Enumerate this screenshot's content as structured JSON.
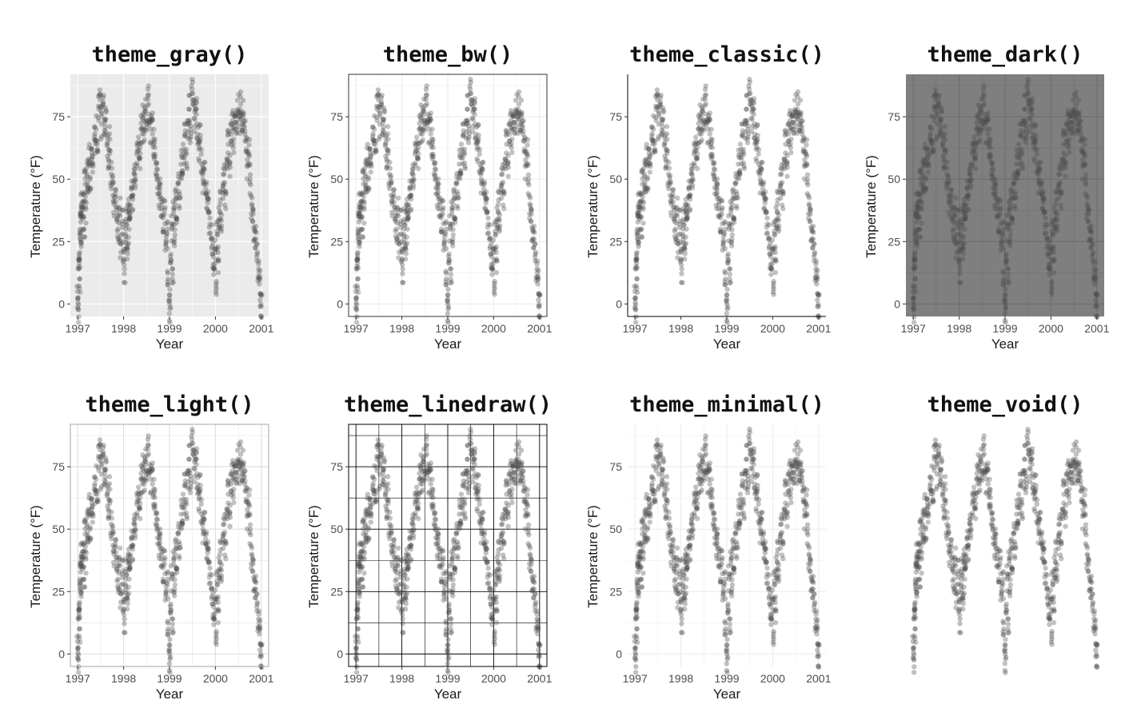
{
  "chart_data": [
    {
      "type": "scatter",
      "theme": "gray",
      "title": "theme_gray()",
      "xlabel": "Year",
      "ylabel": "Temperature (°F)",
      "xticks": [
        "1997",
        "1998",
        "1999",
        "2000",
        "2001"
      ],
      "yticks": [
        "0",
        "25",
        "50",
        "75"
      ],
      "xlim": [
        1997,
        2001
      ],
      "ylim": [
        -5,
        92
      ],
      "grid": true,
      "background": "#ebebeb",
      "grid_color": "#ffffff"
    },
    {
      "type": "scatter",
      "theme": "bw",
      "title": "theme_bw()",
      "xlabel": "Year",
      "ylabel": "Temperature (°F)",
      "xticks": [
        "1997",
        "1998",
        "1999",
        "2000",
        "2001"
      ],
      "yticks": [
        "0",
        "25",
        "50",
        "75"
      ],
      "xlim": [
        1997,
        2001
      ],
      "ylim": [
        -5,
        92
      ],
      "grid": true,
      "background": "#ffffff",
      "grid_color": "#ebebeb",
      "border_color": "#333333"
    },
    {
      "type": "scatter",
      "theme": "classic",
      "title": "theme_classic()",
      "xlabel": "Year",
      "ylabel": "Temperature (°F)",
      "xticks": [
        "1997",
        "1998",
        "1999",
        "2000",
        "2001"
      ],
      "yticks": [
        "0",
        "25",
        "50",
        "75"
      ],
      "xlim": [
        1997,
        2001
      ],
      "ylim": [
        -5,
        92
      ],
      "grid": false,
      "background": "#ffffff",
      "axis_line_color": "#000000"
    },
    {
      "type": "scatter",
      "theme": "dark",
      "title": "theme_dark()",
      "xlabel": "Year",
      "ylabel": "Temperature (°F)",
      "xticks": [
        "1997",
        "1998",
        "1999",
        "2000",
        "2001"
      ],
      "yticks": [
        "0",
        "25",
        "50",
        "75"
      ],
      "xlim": [
        1997,
        2001
      ],
      "ylim": [
        -5,
        92
      ],
      "grid": true,
      "background": "#7f7f7f",
      "grid_color": "#6e6e6e"
    },
    {
      "type": "scatter",
      "theme": "light",
      "title": "theme_light()",
      "xlabel": "Year",
      "ylabel": "Temperature (°F)",
      "xticks": [
        "1997",
        "1998",
        "1999",
        "2000",
        "2001"
      ],
      "yticks": [
        "0",
        "25",
        "50",
        "75"
      ],
      "xlim": [
        1997,
        2001
      ],
      "ylim": [
        -5,
        92
      ],
      "grid": true,
      "background": "#ffffff",
      "grid_color": "#dedede",
      "border_color": "#b3b3b3"
    },
    {
      "type": "scatter",
      "theme": "linedraw",
      "title": "theme_linedraw()",
      "xlabel": "Year",
      "ylabel": "Temperature (°F)",
      "xticks": [
        "1997",
        "1998",
        "1999",
        "2000",
        "2001"
      ],
      "yticks": [
        "0",
        "25",
        "50",
        "75"
      ],
      "xlim": [
        1997,
        2001
      ],
      "ylim": [
        -5,
        92
      ],
      "grid": true,
      "background": "#ffffff",
      "grid_color": "#000000",
      "border_color": "#000000"
    },
    {
      "type": "scatter",
      "theme": "minimal",
      "title": "theme_minimal()",
      "xlabel": "Year",
      "ylabel": "Temperature (°F)",
      "xticks": [
        "1997",
        "1998",
        "1999",
        "2000",
        "2001"
      ],
      "yticks": [
        "0",
        "25",
        "50",
        "75"
      ],
      "xlim": [
        1997,
        2001
      ],
      "ylim": [
        -5,
        92
      ],
      "grid": true,
      "background": "#ffffff",
      "grid_color": "#ebebeb"
    },
    {
      "type": "scatter",
      "theme": "void",
      "title": "theme_void()",
      "xlabel": "",
      "ylabel": "",
      "xticks": [],
      "yticks": [],
      "xlim": [
        1997,
        2001
      ],
      "ylim": [
        -5,
        92
      ],
      "grid": false,
      "background": "#ffffff"
    }
  ],
  "series": {
    "point_color": "#4d4d4d",
    "point_opacity": 0.35,
    "daily_temperature": [
      {
        "x": 1997.0,
        "y": 2
      },
      {
        "x": 1997.01,
        "y": -2
      },
      {
        "x": 1997.02,
        "y": 14
      },
      {
        "x": 1997.03,
        "y": 20
      },
      {
        "x": 1997.04,
        "y": 10
      },
      {
        "x": 1997.05,
        "y": 30
      },
      {
        "x": 1997.06,
        "y": 36
      },
      {
        "x": 1997.07,
        "y": 26
      },
      {
        "x": 1997.08,
        "y": 40
      },
      {
        "x": 1997.1,
        "y": 34
      },
      {
        "x": 1997.12,
        "y": 44
      },
      {
        "x": 1997.14,
        "y": 30
      },
      {
        "x": 1997.16,
        "y": 48
      },
      {
        "x": 1997.18,
        "y": 38
      },
      {
        "x": 1997.2,
        "y": 52
      },
      {
        "x": 1997.22,
        "y": 46
      },
      {
        "x": 1997.24,
        "y": 58
      },
      {
        "x": 1997.27,
        "y": 50
      },
      {
        "x": 1997.3,
        "y": 62
      },
      {
        "x": 1997.33,
        "y": 56
      },
      {
        "x": 1997.36,
        "y": 66
      },
      {
        "x": 1997.4,
        "y": 70
      },
      {
        "x": 1997.43,
        "y": 62
      },
      {
        "x": 1997.46,
        "y": 78
      },
      {
        "x": 1997.49,
        "y": 84
      },
      {
        "x": 1997.52,
        "y": 72
      },
      {
        "x": 1997.55,
        "y": 80
      },
      {
        "x": 1997.58,
        "y": 68
      },
      {
        "x": 1997.61,
        "y": 74
      },
      {
        "x": 1997.64,
        "y": 64
      },
      {
        "x": 1997.67,
        "y": 58
      },
      {
        "x": 1997.7,
        "y": 66
      },
      {
        "x": 1997.73,
        "y": 52
      },
      {
        "x": 1997.76,
        "y": 48
      },
      {
        "x": 1997.79,
        "y": 40
      },
      {
        "x": 1997.82,
        "y": 44
      },
      {
        "x": 1997.85,
        "y": 34
      },
      {
        "x": 1997.88,
        "y": 30
      },
      {
        "x": 1997.91,
        "y": 38
      },
      {
        "x": 1997.94,
        "y": 24
      },
      {
        "x": 1997.97,
        "y": 32
      },
      {
        "x": 1998.0,
        "y": 22
      },
      {
        "x": 1998.02,
        "y": 14
      },
      {
        "x": 1998.04,
        "y": 28
      },
      {
        "x": 1998.06,
        "y": 34
      },
      {
        "x": 1998.08,
        "y": 18
      },
      {
        "x": 1998.1,
        "y": 40
      },
      {
        "x": 1998.12,
        "y": 30
      },
      {
        "x": 1998.14,
        "y": 36
      },
      {
        "x": 1998.17,
        "y": 46
      },
      {
        "x": 1998.2,
        "y": 42
      },
      {
        "x": 1998.23,
        "y": 54
      },
      {
        "x": 1998.26,
        "y": 50
      },
      {
        "x": 1998.29,
        "y": 60
      },
      {
        "x": 1998.32,
        "y": 64
      },
      {
        "x": 1998.35,
        "y": 58
      },
      {
        "x": 1998.38,
        "y": 70
      },
      {
        "x": 1998.41,
        "y": 74
      },
      {
        "x": 1998.44,
        "y": 68
      },
      {
        "x": 1998.47,
        "y": 78
      },
      {
        "x": 1998.5,
        "y": 72
      },
      {
        "x": 1998.53,
        "y": 82
      },
      {
        "x": 1998.56,
        "y": 76
      },
      {
        "x": 1998.59,
        "y": 70
      },
      {
        "x": 1998.62,
        "y": 74
      },
      {
        "x": 1998.65,
        "y": 64
      },
      {
        "x": 1998.68,
        "y": 60
      },
      {
        "x": 1998.71,
        "y": 56
      },
      {
        "x": 1998.74,
        "y": 50
      },
      {
        "x": 1998.77,
        "y": 44
      },
      {
        "x": 1998.8,
        "y": 48
      },
      {
        "x": 1998.83,
        "y": 38
      },
      {
        "x": 1998.86,
        "y": 30
      },
      {
        "x": 1998.89,
        "y": 36
      },
      {
        "x": 1998.92,
        "y": 24
      },
      {
        "x": 1998.95,
        "y": 28
      },
      {
        "x": 1998.97,
        "y": 10
      },
      {
        "x": 1999.0,
        "y": 2
      },
      {
        "x": 1999.01,
        "y": -2
      },
      {
        "x": 1999.03,
        "y": 20
      },
      {
        "x": 1999.05,
        "y": 30
      },
      {
        "x": 1999.07,
        "y": 14
      },
      {
        "x": 1999.09,
        "y": 36
      },
      {
        "x": 1999.11,
        "y": 26
      },
      {
        "x": 1999.13,
        "y": 42
      },
      {
        "x": 1999.16,
        "y": 34
      },
      {
        "x": 1999.19,
        "y": 48
      },
      {
        "x": 1999.22,
        "y": 44
      },
      {
        "x": 1999.25,
        "y": 56
      },
      {
        "x": 1999.28,
        "y": 52
      },
      {
        "x": 1999.31,
        "y": 62
      },
      {
        "x": 1999.34,
        "y": 68
      },
      {
        "x": 1999.37,
        "y": 60
      },
      {
        "x": 1999.4,
        "y": 72
      },
      {
        "x": 1999.43,
        "y": 78
      },
      {
        "x": 1999.46,
        "y": 70
      },
      {
        "x": 1999.49,
        "y": 86
      },
      {
        "x": 1999.52,
        "y": 80
      },
      {
        "x": 1999.55,
        "y": 74
      },
      {
        "x": 1999.58,
        "y": 78
      },
      {
        "x": 1999.61,
        "y": 68
      },
      {
        "x": 1999.64,
        "y": 62
      },
      {
        "x": 1999.67,
        "y": 66
      },
      {
        "x": 1999.7,
        "y": 56
      },
      {
        "x": 1999.73,
        "y": 50
      },
      {
        "x": 1999.76,
        "y": 54
      },
      {
        "x": 1999.79,
        "y": 44
      },
      {
        "x": 1999.82,
        "y": 38
      },
      {
        "x": 1999.85,
        "y": 42
      },
      {
        "x": 1999.88,
        "y": 32
      },
      {
        "x": 1999.91,
        "y": 26
      },
      {
        "x": 1999.94,
        "y": 20
      },
      {
        "x": 1999.97,
        "y": 14
      },
      {
        "x": 2000.0,
        "y": 22
      },
      {
        "x": 2000.02,
        "y": 6
      },
      {
        "x": 2000.04,
        "y": 28
      },
      {
        "x": 2000.06,
        "y": 18
      },
      {
        "x": 2000.08,
        "y": 34
      },
      {
        "x": 2000.1,
        "y": 40
      },
      {
        "x": 2000.13,
        "y": 30
      },
      {
        "x": 2000.16,
        "y": 46
      },
      {
        "x": 2000.19,
        "y": 52
      },
      {
        "x": 2000.22,
        "y": 44
      },
      {
        "x": 2000.25,
        "y": 58
      },
      {
        "x": 2000.28,
        "y": 64
      },
      {
        "x": 2000.31,
        "y": 56
      },
      {
        "x": 2000.34,
        "y": 68
      },
      {
        "x": 2000.37,
        "y": 72
      },
      {
        "x": 2000.4,
        "y": 66
      },
      {
        "x": 2000.43,
        "y": 76
      },
      {
        "x": 2000.46,
        "y": 70
      },
      {
        "x": 2000.49,
        "y": 78
      },
      {
        "x": 2000.52,
        "y": 74
      },
      {
        "x": 2000.55,
        "y": 80
      },
      {
        "x": 2000.58,
        "y": 72
      },
      {
        "x": 2000.61,
        "y": 76
      },
      {
        "x": 2000.64,
        "y": 68
      },
      {
        "x": 2000.67,
        "y": 62
      },
      {
        "x": 2000.7,
        "y": 56
      },
      {
        "x": 2000.73,
        "y": 60
      },
      {
        "x": 2000.76,
        "y": 50
      },
      {
        "x": 2000.79,
        "y": 40
      },
      {
        "x": 2000.82,
        "y": 36
      },
      {
        "x": 2000.85,
        "y": 30
      },
      {
        "x": 2000.88,
        "y": 26
      },
      {
        "x": 2000.91,
        "y": 20
      },
      {
        "x": 2000.94,
        "y": 14
      },
      {
        "x": 2000.96,
        "y": 8
      },
      {
        "x": 2000.98,
        "y": 4
      },
      {
        "x": 2001.0,
        "y": -1
      }
    ]
  }
}
